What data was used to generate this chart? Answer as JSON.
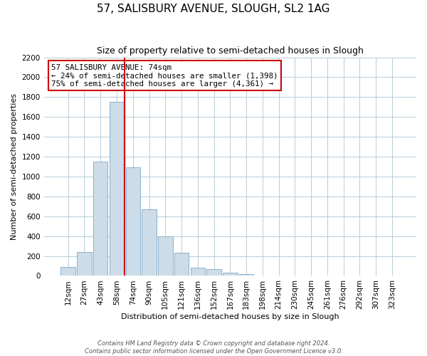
{
  "title": "57, SALISBURY AVENUE, SLOUGH, SL2 1AG",
  "subtitle": "Size of property relative to semi-detached houses in Slough",
  "xlabel": "Distribution of semi-detached houses by size in Slough",
  "ylabel": "Number of semi-detached properties",
  "bar_labels": [
    "12sqm",
    "27sqm",
    "43sqm",
    "58sqm",
    "74sqm",
    "90sqm",
    "105sqm",
    "121sqm",
    "136sqm",
    "152sqm",
    "167sqm",
    "183sqm",
    "198sqm",
    "214sqm",
    "230sqm",
    "245sqm",
    "261sqm",
    "276sqm",
    "292sqm",
    "307sqm",
    "323sqm"
  ],
  "bar_heights": [
    90,
    240,
    1150,
    1750,
    1090,
    670,
    400,
    230,
    85,
    70,
    35,
    20,
    0,
    0,
    0,
    0,
    0,
    0,
    0,
    0,
    0
  ],
  "bar_color": "#ccdce8",
  "bar_edge_color": "#8ab0cc",
  "vline_index": 3,
  "vline_color": "#cc0000",
  "ylim": [
    0,
    2200
  ],
  "yticks": [
    0,
    200,
    400,
    600,
    800,
    1000,
    1200,
    1400,
    1600,
    1800,
    2000,
    2200
  ],
  "annotation_title": "57 SALISBURY AVENUE: 74sqm",
  "annotation_line1": "← 24% of semi-detached houses are smaller (1,398)",
  "annotation_line2": "75% of semi-detached houses are larger (4,361) →",
  "annotation_box_facecolor": "#ffffff",
  "annotation_box_edgecolor": "#cc0000",
  "footer_line1": "Contains HM Land Registry data © Crown copyright and database right 2024.",
  "footer_line2": "Contains public sector information licensed under the Open Government Licence v3.0.",
  "background_color": "#ffffff",
  "grid_color": "#b8ccd8",
  "title_fontsize": 11,
  "subtitle_fontsize": 9,
  "axis_label_fontsize": 8,
  "tick_fontsize": 7.5,
  "ylabel_fontsize": 8
}
